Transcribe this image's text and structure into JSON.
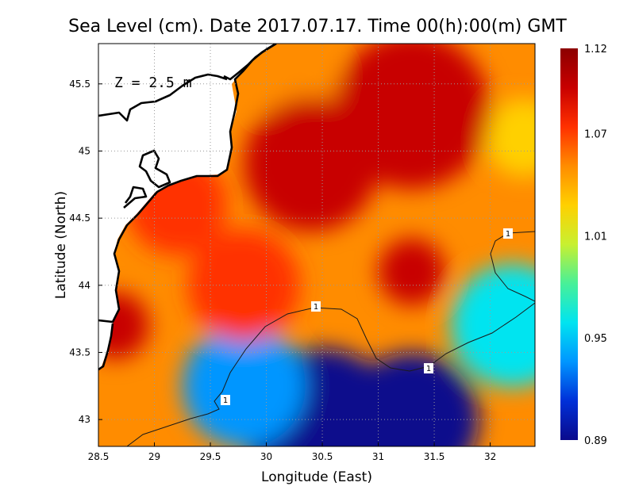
{
  "title": "Sea Level (cm). Date 2017.07.17. Time 00(h):00(m) GMT",
  "depth_label": "Z = 2.5 m",
  "colors": {
    "scale": [
      "#0a0a8c",
      "#0030d8",
      "#0096ff",
      "#00e4f0",
      "#48f098",
      "#c8f030",
      "#ffd000",
      "#ff8c00",
      "#ff3000",
      "#c80000",
      "#8c0000"
    ],
    "coastline": "#000000",
    "contour": "#1a1a1a",
    "grid": "#9a9a9a"
  },
  "chart_data": {
    "type": "heatmap",
    "title": "Sea Level (cm). Date 2017.07.17. Time 00(h):00(m) GMT",
    "xlabel": "Longitude (East)",
    "ylabel": "Latitude (North)",
    "xlim": [
      28.5,
      32.4
    ],
    "ylim": [
      42.8,
      45.8
    ],
    "x_ticks": [
      28.5,
      29,
      29.5,
      30,
      30.5,
      31,
      31.5,
      32
    ],
    "x_tick_labels": [
      "28.5",
      "29",
      "29.5",
      "30",
      "30.5",
      "31",
      "31.5",
      "32"
    ],
    "y_ticks": [
      43,
      43.5,
      44,
      44.5,
      45,
      45.5
    ],
    "y_tick_labels": [
      "43",
      "43.5",
      "44",
      "44.5",
      "45",
      "45.5"
    ],
    "grid": true,
    "colorbar": {
      "min": 0.89,
      "max": 1.12,
      "ticks": [
        0.89,
        0.95,
        1.01,
        1.07,
        1.12
      ],
      "tick_labels": [
        "0.89",
        "0.95",
        "1.01",
        "1.07",
        "1.12"
      ]
    },
    "contour_level": 1,
    "contour_labels": [
      "1",
      "1",
      "1",
      "1"
    ],
    "field_centers": [
      {
        "lon": 30.5,
        "lat": 42.95,
        "value": 0.89,
        "radius_deg": 0.7
      },
      {
        "lon": 31.3,
        "lat": 43.0,
        "value": 0.9,
        "radius_deg": 0.6
      },
      {
        "lon": 29.8,
        "lat": 43.25,
        "value": 0.94,
        "radius_deg": 0.55
      },
      {
        "lon": 32.2,
        "lat": 43.7,
        "value": 0.96,
        "radius_deg": 0.55
      },
      {
        "lon": 32.3,
        "lat": 45.1,
        "value": 1.02,
        "radius_deg": 0.35
      },
      {
        "lon": 30.3,
        "lat": 45.45,
        "value": 1.05,
        "radius_deg": 0.4
      },
      {
        "lon": 31.3,
        "lat": 45.3,
        "value": 1.1,
        "radius_deg": 0.7
      },
      {
        "lon": 30.4,
        "lat": 44.9,
        "value": 1.09,
        "radius_deg": 0.6
      },
      {
        "lon": 28.65,
        "lat": 43.7,
        "value": 1.1,
        "radius_deg": 0.3
      },
      {
        "lon": 31.3,
        "lat": 44.1,
        "value": 1.09,
        "radius_deg": 0.3
      },
      {
        "lon": 29.2,
        "lat": 44.6,
        "value": 1.08,
        "radius_deg": 0.45
      },
      {
        "lon": 29.8,
        "lat": 44.0,
        "value": 1.07,
        "radius_deg": 0.5
      }
    ],
    "field_background": 1.06
  }
}
